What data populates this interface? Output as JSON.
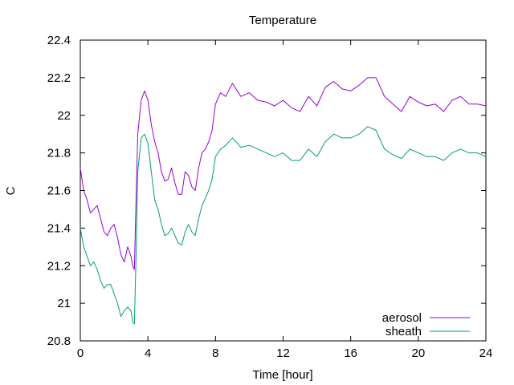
{
  "chart_data": {
    "type": "line",
    "title": "Temperature",
    "xlabel": "Time [hour]",
    "ylabel": "C",
    "xlim": [
      0,
      24
    ],
    "ylim": [
      20.8,
      22.4
    ],
    "xticks": [
      0,
      4,
      8,
      12,
      16,
      20,
      24
    ],
    "xtick_labels": [
      "0",
      "4",
      "8",
      "12",
      "16",
      "20",
      "24"
    ],
    "yticks": [
      20.8,
      21,
      21.2,
      21.4,
      21.6,
      21.8,
      22,
      22.2,
      22.4
    ],
    "ytick_labels": [
      "20.8",
      "21",
      "21.2",
      "21.4",
      "21.6",
      "21.8",
      "22",
      "22.2",
      "22.4"
    ],
    "grid": false,
    "legend": "bottom-right",
    "series": [
      {
        "name": "aerosol",
        "color": "#9400d3",
        "x": [
          0,
          0.2,
          0.4,
          0.6,
          0.8,
          1.0,
          1.2,
          1.4,
          1.6,
          1.8,
          2.0,
          2.2,
          2.4,
          2.6,
          2.8,
          3.0,
          3.1,
          3.2,
          3.3,
          3.4,
          3.6,
          3.8,
          4.0,
          4.2,
          4.4,
          4.6,
          4.8,
          5.0,
          5.2,
          5.4,
          5.6,
          5.8,
          6.0,
          6.2,
          6.4,
          6.6,
          6.8,
          7.0,
          7.2,
          7.4,
          7.6,
          7.8,
          8.0,
          8.3,
          8.6,
          9.0,
          9.5,
          10.0,
          10.5,
          11.0,
          11.5,
          12.0,
          12.5,
          13.0,
          13.5,
          14.0,
          14.5,
          15.0,
          15.5,
          16.0,
          16.5,
          17.0,
          17.5,
          18.0,
          18.5,
          19.0,
          19.5,
          20.0,
          20.5,
          21.0,
          21.5,
          22.0,
          22.5,
          23.0,
          23.5,
          24.0
        ],
        "values": [
          21.72,
          21.6,
          21.55,
          21.48,
          21.5,
          21.52,
          21.45,
          21.38,
          21.36,
          21.4,
          21.42,
          21.35,
          21.26,
          21.22,
          21.3,
          21.25,
          21.2,
          21.18,
          21.55,
          21.9,
          22.08,
          22.13,
          22.08,
          21.95,
          21.86,
          21.8,
          21.7,
          21.65,
          21.66,
          21.72,
          21.64,
          21.58,
          21.58,
          21.7,
          21.68,
          21.62,
          21.6,
          21.72,
          21.8,
          21.82,
          21.86,
          21.92,
          22.06,
          22.12,
          22.1,
          22.17,
          22.1,
          22.12,
          22.08,
          22.07,
          22.05,
          22.08,
          22.04,
          22.02,
          22.1,
          22.05,
          22.15,
          22.18,
          22.14,
          22.13,
          22.16,
          22.2,
          22.2,
          22.1,
          22.06,
          22.02,
          22.1,
          22.07,
          22.05,
          22.06,
          22.02,
          22.08,
          22.1,
          22.06,
          22.06,
          22.05
        ]
      },
      {
        "name": "sheath",
        "color": "#009e73",
        "x": [
          0,
          0.2,
          0.4,
          0.6,
          0.8,
          1.0,
          1.2,
          1.4,
          1.6,
          1.8,
          2.0,
          2.2,
          2.4,
          2.6,
          2.8,
          3.0,
          3.1,
          3.2,
          3.3,
          3.4,
          3.6,
          3.8,
          4.0,
          4.2,
          4.4,
          4.6,
          4.8,
          5.0,
          5.2,
          5.4,
          5.6,
          5.8,
          6.0,
          6.2,
          6.4,
          6.6,
          6.8,
          7.0,
          7.2,
          7.4,
          7.6,
          7.8,
          8.0,
          8.3,
          8.6,
          9.0,
          9.5,
          10.0,
          10.5,
          11.0,
          11.5,
          12.0,
          12.5,
          13.0,
          13.5,
          14.0,
          14.5,
          15.0,
          15.5,
          16.0,
          16.5,
          17.0,
          17.5,
          18.0,
          18.5,
          19.0,
          19.5,
          20.0,
          20.5,
          21.0,
          21.5,
          22.0,
          22.5,
          23.0,
          23.5,
          24.0
        ],
        "values": [
          21.4,
          21.3,
          21.25,
          21.2,
          21.22,
          21.18,
          21.12,
          21.08,
          21.1,
          21.1,
          21.05,
          21.0,
          20.93,
          20.96,
          20.98,
          20.96,
          20.9,
          20.89,
          21.25,
          21.7,
          21.88,
          21.9,
          21.85,
          21.7,
          21.55,
          21.5,
          21.42,
          21.36,
          21.37,
          21.4,
          21.36,
          21.32,
          21.31,
          21.38,
          21.42,
          21.38,
          21.36,
          21.45,
          21.52,
          21.56,
          21.6,
          21.66,
          21.78,
          21.82,
          21.84,
          21.88,
          21.83,
          21.84,
          21.82,
          21.8,
          21.78,
          21.8,
          21.76,
          21.76,
          21.82,
          21.78,
          21.86,
          21.9,
          21.88,
          21.88,
          21.9,
          21.94,
          21.92,
          21.82,
          21.79,
          21.77,
          21.82,
          21.8,
          21.78,
          21.78,
          21.76,
          21.8,
          21.82,
          21.8,
          21.8,
          21.78
        ]
      }
    ]
  }
}
